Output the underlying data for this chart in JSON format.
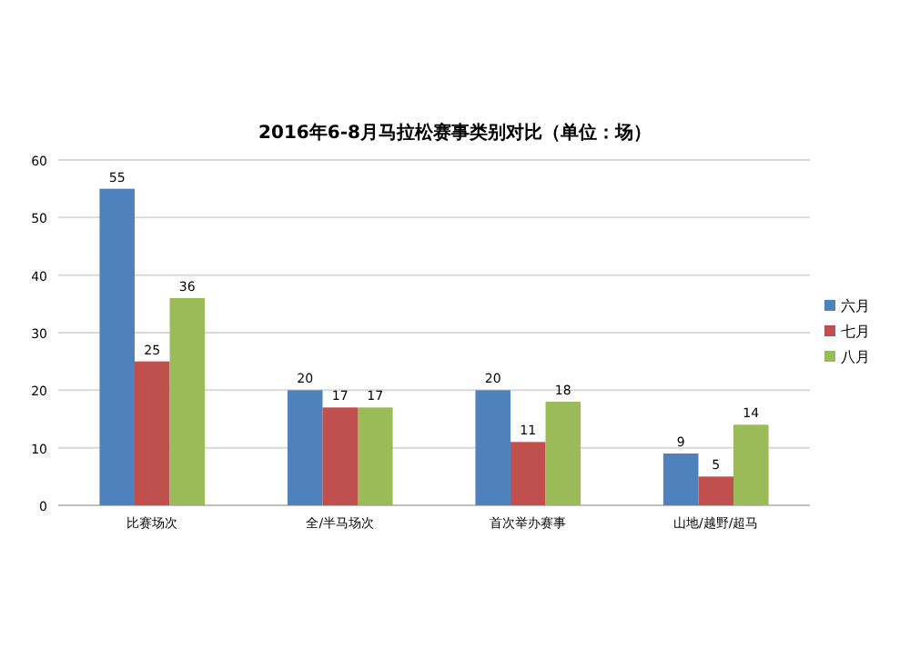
{
  "chart_data": {
    "type": "bar",
    "title": "2016年6-8月马拉松赛事类别对比（单位：场）",
    "categories": [
      "比赛场次",
      "全/半马场次",
      "首次举办赛事",
      "山地/越野/超马"
    ],
    "series": [
      {
        "name": "六月",
        "color": "#4f81bd",
        "values": [
          55,
          20,
          20,
          9
        ]
      },
      {
        "name": "七月",
        "color": "#c0504d",
        "values": [
          25,
          17,
          11,
          5
        ]
      },
      {
        "name": "八月",
        "color": "#9bbb59",
        "values": [
          36,
          17,
          18,
          14
        ]
      }
    ],
    "ylim": [
      0,
      60
    ],
    "yticks": [
      0,
      10,
      20,
      30,
      40,
      50,
      60
    ],
    "grid": "y",
    "legend": "right",
    "data_labels": true
  }
}
